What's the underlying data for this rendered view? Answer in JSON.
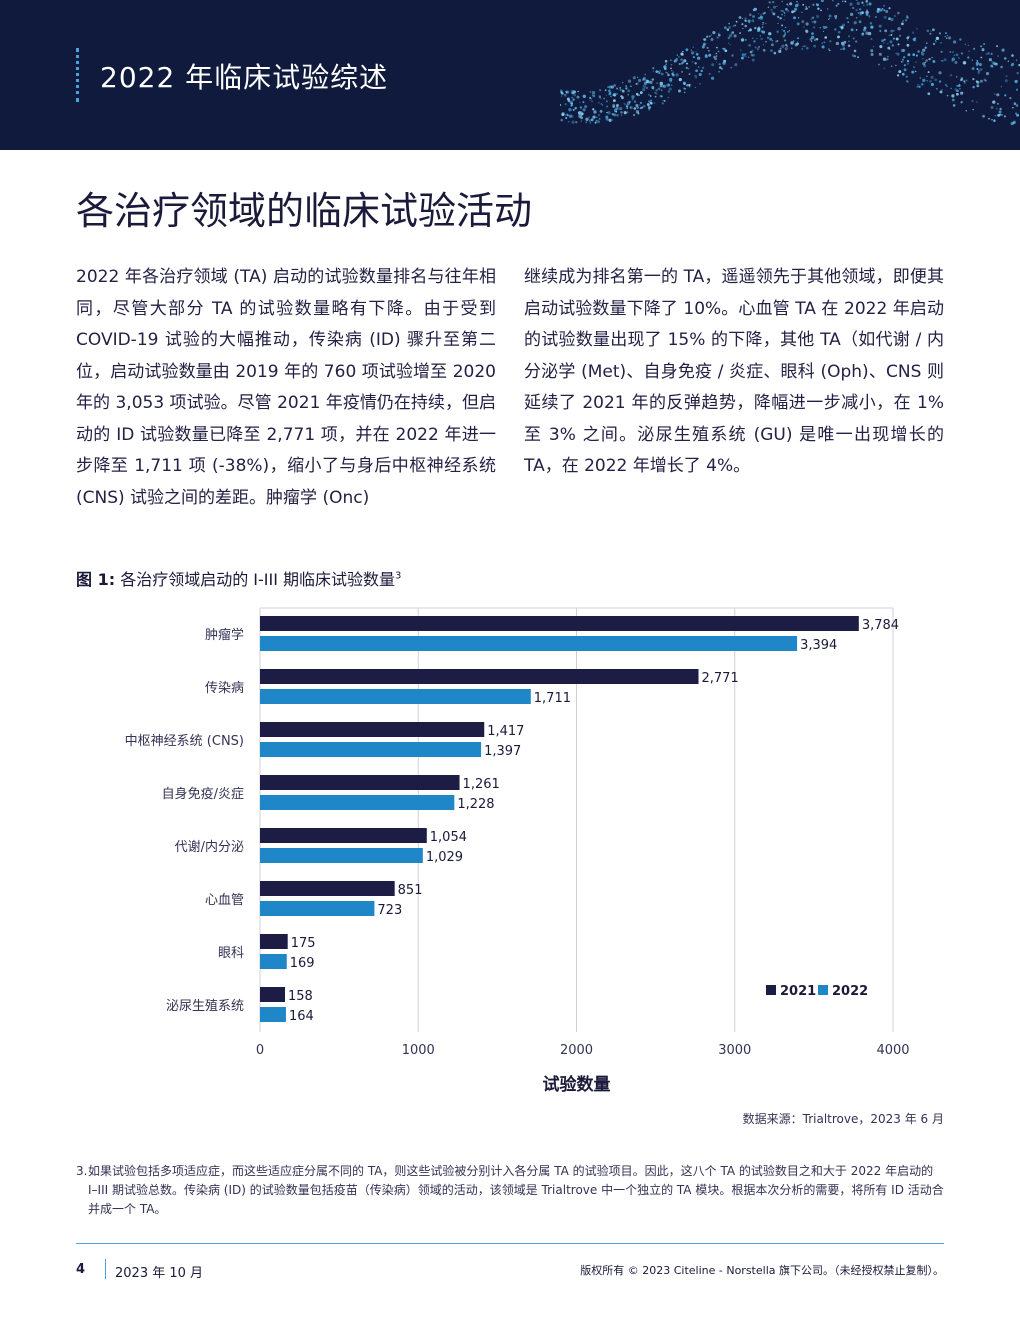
{
  "header": {
    "section_title": "2022 年临床试验综述"
  },
  "page_heading": "各治疗领域的临床试验活动",
  "body": {
    "left": "2022 年各治疗领域 (TA) 启动的试验数量排名与往年相同，尽管大部分 TA 的试验数量略有下降。由于受到 COVID-19 试验的大幅推动，传染病 (ID) 骤升至第二位，启动试验数量由 2019 年的 760 项试验增至 2020 年的 3,053 项试验。尽管 2021 年疫情仍在持续，但启动的 ID 试验数量已降至 2,771 项，并在 2022 年进一步降至 1,711 项 (-38%)，缩小了与身后中枢神经系统 (CNS) 试验之间的差距。肿瘤学 (Onc)",
    "right": "继续成为排名第一的 TA，遥遥领先于其他领域，即便其启动试验数量下降了 10%。心血管 TA 在 2022 年启动的试验数量出现了 15% 的下降，其他 TA（如代谢 / 内分泌学 (Met)、自身免疫 / 炎症、眼科 (Oph)、CNS 则延续了 2021 年的反弹趋势，降幅进一步减小，在 1% 至 3% 之间。泌尿生殖系统 (GU) 是唯一出现增长的 TA，在 2022 年增长了 4%。"
  },
  "figure": {
    "label": "图 1:",
    "caption": "各治疗领域启动的 I-III 期临床试验数量",
    "footnote_ref": "3",
    "source": "数据来源：Trialtrove，2023 年 6 月"
  },
  "chart_data": {
    "type": "bar",
    "orientation": "horizontal",
    "categories": [
      "肿瘤学",
      "传染病",
      "中枢神经系统 (CNS)",
      "自身免疫/炎症",
      "代谢/内分泌",
      "心血管",
      "眼科",
      "泌尿生殖系统"
    ],
    "series": [
      {
        "name": "2021",
        "color": "#1c1c44",
        "values": [
          3784,
          2771,
          1417,
          1261,
          1054,
          851,
          175,
          158
        ]
      },
      {
        "name": "2022",
        "color": "#1f86c8",
        "values": [
          3394,
          1711,
          1397,
          1228,
          1029,
          723,
          169,
          164
        ]
      }
    ],
    "value_labels": {
      "2021": [
        "3,784",
        "2,771",
        "1,417",
        "1,261",
        "1,054",
        "851",
        "175",
        "158"
      ],
      "2022": [
        "3,394",
        "1,711",
        "1,397",
        "1,228",
        "1,029",
        "723",
        "169",
        "164"
      ]
    },
    "xlim": [
      0,
      4000
    ],
    "xticks": [
      0,
      1000,
      2000,
      3000,
      4000
    ],
    "xlabel": "试验数量",
    "grid": "vertical",
    "legend_position": "bottom-right"
  },
  "footnote": {
    "number": "3.",
    "text": "如果试验包括多项适应症，而这些适应症分属不同的 TA，则这些试验被分别计入各分属 TA 的试验项目。因此，这八个 TA 的试验数目之和大于 2022 年启动的 I–III 期试验总数。传染病 (ID) 的试验数量包括疫苗（传染病）领域的活动，该领域是 Trialtrove 中一个独立的 TA 模块。根据本次分析的需要，将所有 ID 活动合并成一个 TA。"
  },
  "footer": {
    "page_number": "4",
    "date": "2023 年 10 月",
    "copyright": "版权所有 © 2023 Citeline - Norstella 旗下公司。（未经授权禁止复制）。"
  }
}
